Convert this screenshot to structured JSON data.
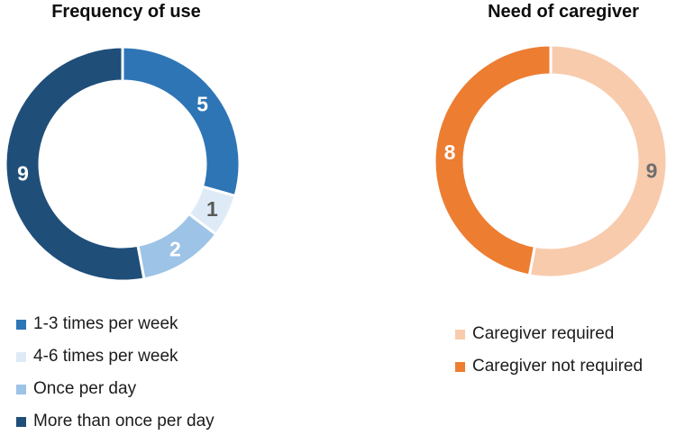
{
  "page": {
    "background_color": "#ffffff"
  },
  "chart_data": [
    {
      "type": "donut",
      "title": "Frequency of use",
      "total": 17,
      "start_angle_deg": 0,
      "direction": "clockwise",
      "legend_position": "bottom-left",
      "outer_radius": 130,
      "inner_radius": 92,
      "separator_color": "#ffffff",
      "segments": [
        {
          "label": "1-3 times per week",
          "value": 5,
          "color": "#2E75B6",
          "label_color": "#FFFFFF"
        },
        {
          "label": "4-6 times per week",
          "value": 1,
          "color": "#DEEBF7",
          "label_color": "#595959"
        },
        {
          "label": "Once per day",
          "value": 2,
          "color": "#9DC3E6",
          "label_color": "#FFFFFF"
        },
        {
          "label": "More than once per day",
          "value": 9,
          "color": "#1F4E79",
          "label_color": "#FFFFFF"
        }
      ]
    },
    {
      "type": "donut",
      "title": "Need of caregiver",
      "total": 17,
      "start_angle_deg": 0,
      "direction": "clockwise",
      "legend_position": "bottom-right",
      "outer_radius": 129,
      "inner_radius": 96,
      "separator_color": "#ffffff",
      "segments": [
        {
          "label": "Caregiver required",
          "value": 9,
          "color": "#F8CBAD",
          "label_color": "#6E6E6E"
        },
        {
          "label": "Caregiver not required",
          "value": 8,
          "color": "#ED7D31",
          "label_color": "#FFFFFF"
        }
      ]
    }
  ]
}
